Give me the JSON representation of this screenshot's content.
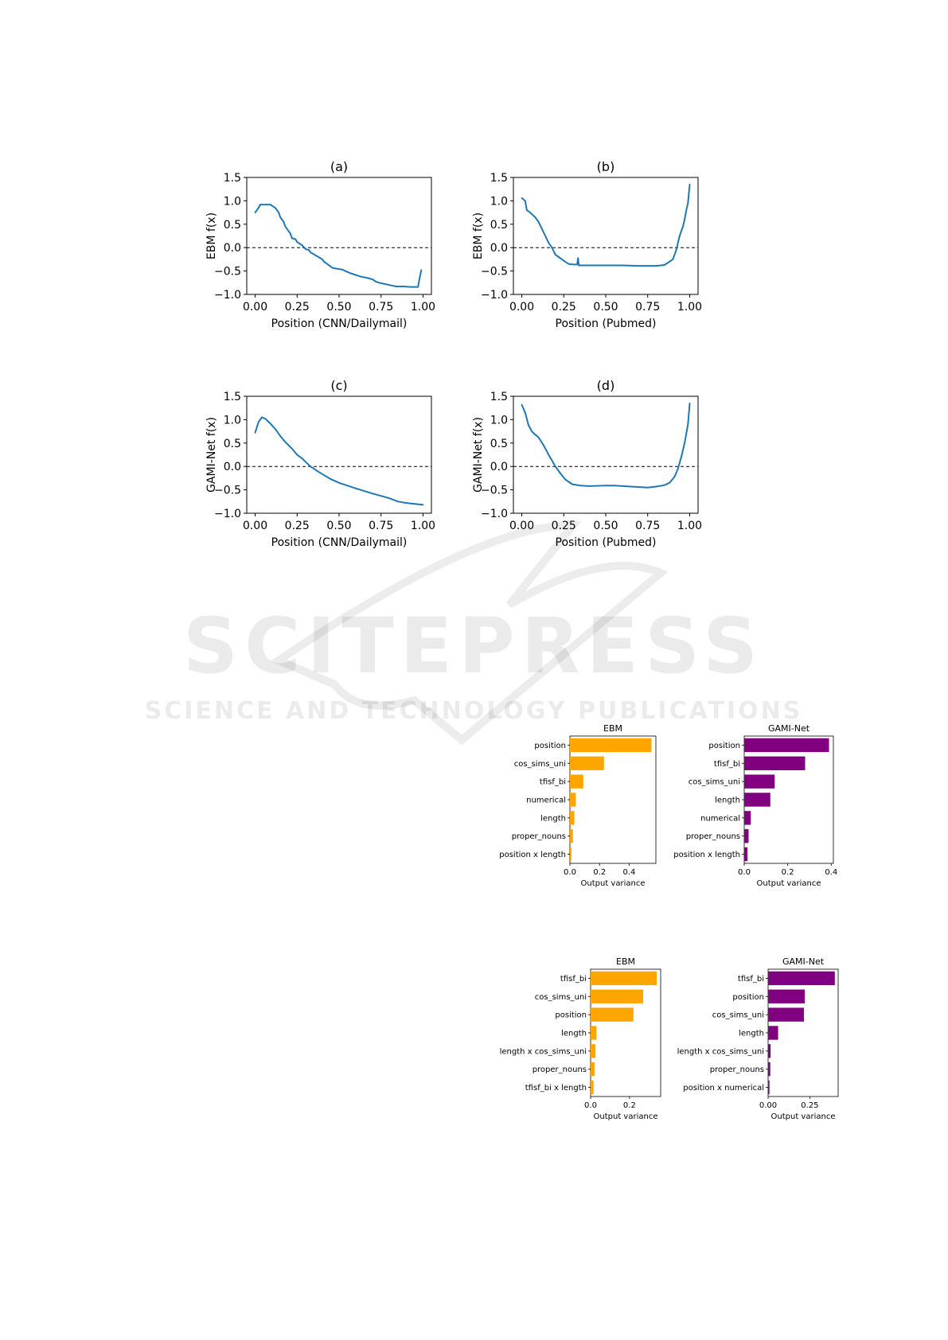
{
  "watermark": {
    "line1": "SCITEPRESS",
    "line2": "SCIENCE AND TECHNOLOGY PUBLICATIONS"
  },
  "chart_data": [
    {
      "type": "line",
      "title": "(a)",
      "xlabel": "Position (CNN/Dailymail)",
      "ylabel": "EBM f(x)",
      "xlim": [
        -0.05,
        1.05
      ],
      "ylim": [
        -1.0,
        1.5
      ],
      "xticks": [
        "0.00",
        "0.25",
        "0.50",
        "0.75",
        "1.00"
      ],
      "yticks": [
        "1.5",
        "1.0",
        "0.5",
        "0.0",
        "−0.5",
        "−1.0"
      ],
      "reference_line": 0.0,
      "series": [
        {
          "x": [
            0.0,
            0.02,
            0.03,
            0.09,
            0.12,
            0.14,
            0.15,
            0.17,
            0.18,
            0.19,
            0.21,
            0.22,
            0.24,
            0.25,
            0.28,
            0.3,
            0.32,
            0.33,
            0.4,
            0.41,
            0.43,
            0.46,
            0.47,
            0.52,
            0.55,
            0.57,
            0.63,
            0.67,
            0.7,
            0.72,
            0.75,
            0.8,
            0.84,
            0.88,
            0.93,
            0.97,
            0.98,
            0.99
          ],
          "y": [
            0.75,
            0.85,
            0.92,
            0.92,
            0.85,
            0.75,
            0.65,
            0.55,
            0.45,
            0.4,
            0.3,
            0.2,
            0.18,
            0.12,
            0.05,
            -0.03,
            -0.05,
            -0.1,
            -0.25,
            -0.3,
            -0.35,
            -0.43,
            -0.44,
            -0.47,
            -0.52,
            -0.55,
            -0.62,
            -0.65,
            -0.68,
            -0.73,
            -0.76,
            -0.8,
            -0.83,
            -0.83,
            -0.84,
            -0.84,
            -0.65,
            -0.48
          ]
        }
      ]
    },
    {
      "type": "line",
      "title": "(b)",
      "xlabel": "Position (Pubmed)",
      "ylabel": "EBM f(x)",
      "xlim": [
        -0.05,
        1.05
      ],
      "ylim": [
        -1.0,
        1.5
      ],
      "xticks": [
        "0.00",
        "0.25",
        "0.50",
        "0.75",
        "1.00"
      ],
      "yticks": [
        "1.5",
        "1.0",
        "0.5",
        "0.0",
        "−0.5",
        "−1.0"
      ],
      "reference_line": 0.0,
      "series": [
        {
          "x": [
            0.0,
            0.02,
            0.03,
            0.05,
            0.08,
            0.1,
            0.12,
            0.14,
            0.16,
            0.18,
            0.2,
            0.22,
            0.25,
            0.28,
            0.31,
            0.33,
            0.335,
            0.34,
            0.45,
            0.6,
            0.7,
            0.8,
            0.85,
            0.88,
            0.9,
            0.92,
            0.93,
            0.94,
            0.96,
            0.97,
            0.98,
            0.99,
            1.0
          ],
          "y": [
            1.06,
            1.0,
            0.8,
            0.75,
            0.65,
            0.55,
            0.4,
            0.25,
            0.1,
            0.0,
            -0.15,
            -0.2,
            -0.28,
            -0.35,
            -0.36,
            -0.36,
            -0.22,
            -0.38,
            -0.38,
            -0.38,
            -0.39,
            -0.39,
            -0.37,
            -0.3,
            -0.25,
            -0.05,
            0.1,
            0.25,
            0.45,
            0.6,
            0.8,
            0.95,
            1.35
          ]
        }
      ]
    },
    {
      "type": "line",
      "title": "(c)",
      "xlabel": "Position (CNN/Dailymail)",
      "ylabel": "GAMI-Net f(x)",
      "xlim": [
        -0.05,
        1.05
      ],
      "ylim": [
        -1.0,
        1.5
      ],
      "xticks": [
        "0.00",
        "0.25",
        "0.50",
        "0.75",
        "1.00"
      ],
      "yticks": [
        "1.5",
        "1.0",
        "0.5",
        "0.0",
        "−0.5",
        "−1.0"
      ],
      "reference_line": 0.0,
      "series": [
        {
          "x": [
            0.0,
            0.02,
            0.04,
            0.06,
            0.09,
            0.12,
            0.15,
            0.18,
            0.22,
            0.25,
            0.28,
            0.3,
            0.33,
            0.38,
            0.45,
            0.5,
            0.6,
            0.7,
            0.75,
            0.8,
            0.85,
            0.9,
            0.95,
            1.0
          ],
          "y": [
            0.72,
            0.95,
            1.05,
            1.02,
            0.92,
            0.8,
            0.65,
            0.52,
            0.38,
            0.25,
            0.17,
            0.1,
            0.0,
            -0.12,
            -0.27,
            -0.35,
            -0.47,
            -0.58,
            -0.63,
            -0.68,
            -0.75,
            -0.78,
            -0.8,
            -0.82
          ]
        }
      ]
    },
    {
      "type": "line",
      "title": "(d)",
      "xlabel": "Position (Pubmed)",
      "ylabel": "GAMI-Net f(x)",
      "xlim": [
        -0.05,
        1.05
      ],
      "ylim": [
        -1.0,
        1.5
      ],
      "xticks": [
        "0.00",
        "0.25",
        "0.50",
        "0.75",
        "1.00"
      ],
      "yticks": [
        "1.5",
        "1.0",
        "0.5",
        "0.0",
        "−0.5",
        "−1.0"
      ],
      "reference_line": 0.0,
      "series": [
        {
          "x": [
            0.0,
            0.02,
            0.04,
            0.06,
            0.08,
            0.1,
            0.13,
            0.16,
            0.2,
            0.23,
            0.26,
            0.3,
            0.35,
            0.4,
            0.5,
            0.55,
            0.6,
            0.65,
            0.7,
            0.75,
            0.8,
            0.85,
            0.88,
            0.91,
            0.93,
            0.95,
            0.97,
            0.99,
            1.0
          ],
          "y": [
            1.32,
            1.15,
            0.88,
            0.75,
            0.68,
            0.62,
            0.45,
            0.25,
            0.0,
            -0.15,
            -0.28,
            -0.38,
            -0.41,
            -0.42,
            -0.41,
            -0.41,
            -0.42,
            -0.43,
            -0.44,
            -0.45,
            -0.43,
            -0.4,
            -0.35,
            -0.22,
            -0.05,
            0.2,
            0.5,
            0.9,
            1.35
          ]
        }
      ]
    },
    {
      "type": "bar",
      "orientation": "horizontal",
      "title": "EBM",
      "xlabel": "Output variance",
      "color": "#FFA500",
      "xlim": [
        0,
        0.58
      ],
      "xticks": [
        {
          "v": 0.0,
          "label": "0.0"
        },
        {
          "v": 0.2,
          "label": "0.2"
        },
        {
          "v": 0.4,
          "label": "0.4"
        }
      ],
      "categories": [
        "position",
        "cos_sims_uni",
        "tfisf_bi",
        "numerical",
        "length",
        "proper_nouns",
        "position x length"
      ],
      "values": [
        0.55,
        0.23,
        0.09,
        0.04,
        0.03,
        0.02,
        0.01
      ]
    },
    {
      "type": "bar",
      "orientation": "horizontal",
      "title": "GAMI-Net",
      "xlabel": "Output variance",
      "color": "#800080",
      "xlim": [
        0,
        0.41
      ],
      "xticks": [
        {
          "v": 0.0,
          "label": "0.0"
        },
        {
          "v": 0.2,
          "label": "0.2"
        },
        {
          "v": 0.4,
          "label": "0.4"
        }
      ],
      "categories": [
        "position",
        "tfisf_bi",
        "cos_sims_uni",
        "length",
        "numerical",
        "proper_nouns",
        "position x length"
      ],
      "values": [
        0.39,
        0.28,
        0.14,
        0.12,
        0.03,
        0.02,
        0.015
      ]
    },
    {
      "type": "bar",
      "orientation": "horizontal",
      "title": "EBM",
      "xlabel": "Output variance",
      "color": "#FFA500",
      "xlim": [
        0,
        0.36
      ],
      "xticks": [
        {
          "v": 0.0,
          "label": "0.0"
        },
        {
          "v": 0.2,
          "label": "0.2"
        }
      ],
      "categories": [
        "tfisf_bi",
        "cos_sims_uni",
        "position",
        "length",
        "length x cos_sims_uni",
        "proper_nouns",
        "tfisf_bi x length"
      ],
      "values": [
        0.34,
        0.27,
        0.22,
        0.03,
        0.025,
        0.02,
        0.015
      ]
    },
    {
      "type": "bar",
      "orientation": "horizontal",
      "title": "GAMI-Net",
      "xlabel": "Output variance",
      "color": "#800080",
      "xlim": [
        0,
        0.42
      ],
      "xticks": [
        {
          "v": 0.0,
          "label": "0.00"
        },
        {
          "v": 0.25,
          "label": "0.25"
        }
      ],
      "categories": [
        "tfisf_bi",
        "position",
        "cos_sims_uni",
        "length",
        "length x cos_sims_uni",
        "proper_nouns",
        "position x numerical"
      ],
      "values": [
        0.4,
        0.22,
        0.215,
        0.06,
        0.015,
        0.013,
        0.008
      ]
    }
  ]
}
